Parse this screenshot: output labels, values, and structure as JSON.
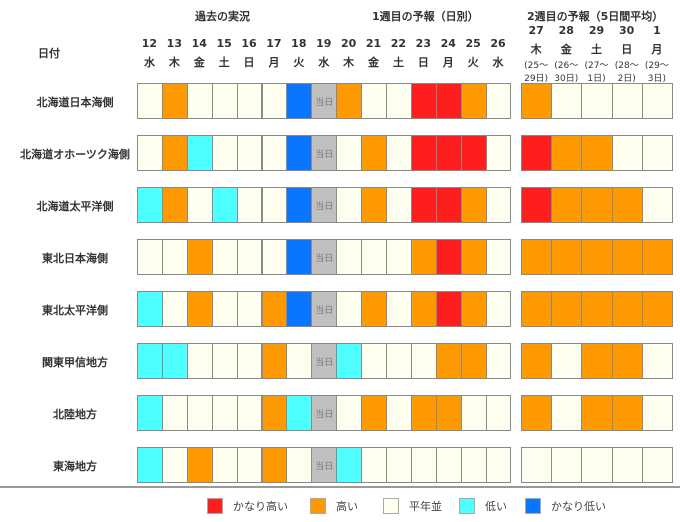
{
  "chart_data": {
    "type": "heatmap",
    "title_past": "過去の実況",
    "title_week1": "1週目の予報（日別）",
    "title_week2": "2週目の予報（5日間平均）",
    "date_header": "日付",
    "today_label": "当日",
    "days": [
      {
        "d": "12",
        "w": "水"
      },
      {
        "d": "13",
        "w": "木"
      },
      {
        "d": "14",
        "w": "金"
      },
      {
        "d": "15",
        "w": "土"
      },
      {
        "d": "16",
        "w": "日"
      },
      {
        "d": "17",
        "w": "月"
      },
      {
        "d": "18",
        "w": "火"
      },
      {
        "d": "19",
        "w": "水"
      },
      {
        "d": "20",
        "w": "木"
      },
      {
        "d": "21",
        "w": "金"
      },
      {
        "d": "22",
        "w": "土"
      },
      {
        "d": "23",
        "w": "日"
      },
      {
        "d": "24",
        "w": "月"
      },
      {
        "d": "25",
        "w": "火"
      },
      {
        "d": "26",
        "w": "水"
      }
    ],
    "weeks": [
      {
        "d": "27",
        "w": "木",
        "r1": "(25～",
        "r2": "29日)"
      },
      {
        "d": "28",
        "w": "金",
        "r1": "(26～",
        "r2": "30日)"
      },
      {
        "d": "29",
        "w": "土",
        "r1": "(27～",
        "r2": "1日)"
      },
      {
        "d": "30",
        "w": "日",
        "r1": "(28～",
        "r2": "2日)"
      },
      {
        "d": "1",
        "w": "月",
        "r1": "(29～",
        "r2": "3日)"
      }
    ],
    "colors": {
      "R": "#ff1e1e",
      "O": "#ff9900",
      "N": "#fffff0",
      "C": "#4dffff",
      "B": "#0a75ff",
      "T": "#c0c0c0"
    },
    "rows": [
      {
        "label": "北海道日本海側",
        "daily": [
          "N",
          "O",
          "N",
          "N",
          "N",
          "N",
          "B",
          "T",
          "O",
          "N",
          "N",
          "R",
          "R",
          "O",
          "N"
        ],
        "weekly": [
          "O",
          "N",
          "N",
          "N",
          "N"
        ]
      },
      {
        "label": "北海道オホーツク海側",
        "daily": [
          "N",
          "O",
          "C",
          "N",
          "N",
          "N",
          "B",
          "T",
          "N",
          "O",
          "N",
          "R",
          "R",
          "R",
          "N"
        ],
        "weekly": [
          "R",
          "O",
          "O",
          "N",
          "N"
        ]
      },
      {
        "label": "北海道太平洋側",
        "daily": [
          "C",
          "O",
          "N",
          "C",
          "N",
          "N",
          "B",
          "T",
          "N",
          "O",
          "N",
          "R",
          "R",
          "O",
          "N"
        ],
        "weekly": [
          "R",
          "O",
          "O",
          "O",
          "N"
        ]
      },
      {
        "label": "東北日本海側",
        "daily": [
          "N",
          "N",
          "O",
          "N",
          "N",
          "N",
          "B",
          "T",
          "N",
          "N",
          "N",
          "O",
          "R",
          "O",
          "N"
        ],
        "weekly": [
          "O",
          "O",
          "O",
          "O",
          "O"
        ]
      },
      {
        "label": "東北太平洋側",
        "daily": [
          "C",
          "N",
          "O",
          "N",
          "N",
          "O",
          "B",
          "T",
          "N",
          "O",
          "N",
          "O",
          "R",
          "O",
          "N"
        ],
        "weekly": [
          "O",
          "O",
          "O",
          "O",
          "O"
        ]
      },
      {
        "label": "関東甲信地方",
        "daily": [
          "C",
          "C",
          "N",
          "N",
          "N",
          "O",
          "N",
          "T",
          "C",
          "N",
          "N",
          "N",
          "O",
          "O",
          "N"
        ],
        "weekly": [
          "O",
          "N",
          "O",
          "O",
          "N"
        ]
      },
      {
        "label": "北陸地方",
        "daily": [
          "C",
          "N",
          "N",
          "N",
          "N",
          "O",
          "C",
          "T",
          "N",
          "O",
          "N",
          "O",
          "O",
          "N",
          "N"
        ],
        "weekly": [
          "O",
          "N",
          "O",
          "O",
          "N"
        ]
      },
      {
        "label": "東海地方",
        "daily": [
          "C",
          "N",
          "O",
          "N",
          "N",
          "O",
          "N",
          "T",
          "C",
          "N",
          "N",
          "N",
          "N",
          "N",
          "N"
        ],
        "weekly": [
          "N",
          "N",
          "N",
          "N",
          "N"
        ]
      }
    ],
    "legend": [
      {
        "code": "R",
        "label": "かなり高い"
      },
      {
        "code": "O",
        "label": "高い"
      },
      {
        "code": "N",
        "label": "平年並"
      },
      {
        "code": "C",
        "label": "低い"
      },
      {
        "code": "B",
        "label": "かなり低い"
      }
    ]
  }
}
